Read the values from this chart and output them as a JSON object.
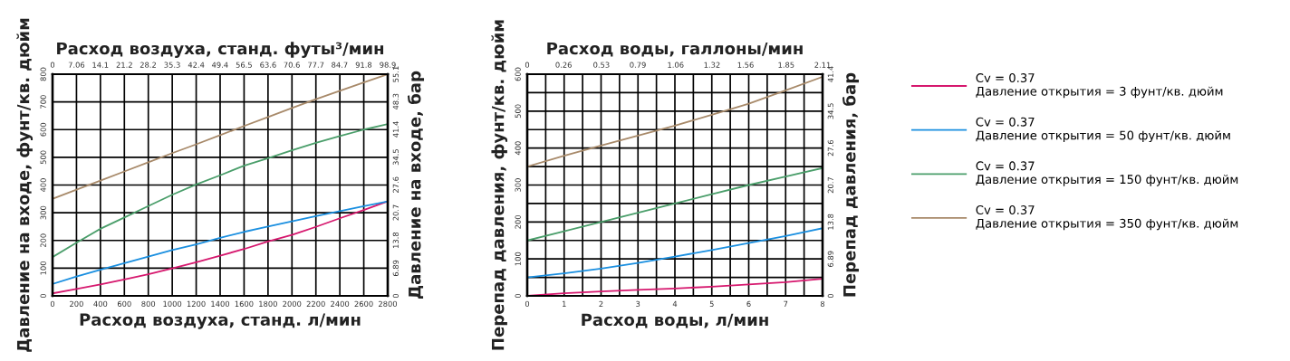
{
  "chart_data": [
    {
      "type": "line",
      "xlabel": "Расход воздуха, станд. л/мин",
      "x2label": "Расход воздуха, станд. футы³/мин",
      "ylabel": "Давление на входе, фунт/кв. дюйм",
      "y2label": "Давление на входе, бар",
      "x": [
        0,
        200,
        400,
        600,
        800,
        1000,
        1200,
        1400,
        1600,
        1800,
        2000,
        2200,
        2400,
        2600,
        2800
      ],
      "series": [
        {
          "name": "Cv = 0.37\nДавление открытия = 3 фунт/кв. дюйм",
          "color": "#d6186e",
          "values": [
            9,
            25,
            41,
            59,
            78,
            99,
            121,
            145,
            169,
            196,
            220,
            249,
            280,
            310,
            341
          ]
        },
        {
          "name": "Cv = 0.37\nДавление открытия = 50 фунт/кв. дюйм",
          "color": "#1a8fe0",
          "values": [
            43,
            70,
            94,
            118,
            142,
            165,
            186,
            209,
            231,
            250,
            269,
            288,
            306,
            324,
            341
          ]
        },
        {
          "name": "Cv = 0.37\nДавление открытия = 150 фунт/кв. дюйм",
          "color": "#4a9e6a",
          "values": [
            140,
            192,
            242,
            283,
            324,
            365,
            402,
            435,
            470,
            497,
            525,
            552,
            577,
            600,
            620
          ]
        },
        {
          "name": "Cv = 0.37\nДавление открытия = 350 фунт/кв. дюйм",
          "color": "#a88a6a",
          "values": [
            350,
            383,
            416,
            449,
            482,
            515,
            547,
            580,
            613,
            645,
            678,
            710,
            740,
            770,
            800
          ]
        }
      ],
      "xlim": [
        0,
        2800
      ],
      "xticks": [
        0,
        200,
        400,
        600,
        800,
        1000,
        1200,
        1400,
        1600,
        1800,
        2000,
        2200,
        2400,
        2600,
        2800
      ],
      "x2lim": [
        0,
        98.9
      ],
      "x2ticks": [
        0,
        7.06,
        14.1,
        21.2,
        28.2,
        35.3,
        42.4,
        49.4,
        56.5,
        63.6,
        70.6,
        77.7,
        84.7,
        91.8,
        98.9
      ],
      "ylim": [
        0,
        800
      ],
      "yticks": [
        0,
        100,
        200,
        300,
        400,
        500,
        600,
        700,
        800
      ],
      "y2lim": [
        0,
        55.1
      ],
      "y2ticks": [
        0,
        6.89,
        13.8,
        20.7,
        27.6,
        34.5,
        41.4,
        48.3,
        55.1
      ],
      "grid": true,
      "legend": "right"
    },
    {
      "type": "line",
      "xlabel": "Расход воды, л/мин",
      "x2label": "Расход воды, галлоны/мин",
      "ylabel": "Перепад давления, фунт/кв. дюйм",
      "y2label": "Перепад давления, бар",
      "x": [
        0,
        1,
        2,
        3,
        4,
        5,
        6,
        7,
        8
      ],
      "series": [
        {
          "color": "#d6186e",
          "values": [
            0,
            7,
            12,
            16,
            20,
            25,
            31,
            37,
            46
          ]
        },
        {
          "color": "#1a8fe0",
          "values": [
            50,
            61,
            74,
            89,
            106,
            124,
            143,
            162,
            183
          ]
        },
        {
          "color": "#4a9e6a",
          "values": [
            150,
            175,
            200,
            225,
            250,
            275,
            300,
            323,
            346
          ]
        },
        {
          "color": "#a88a6a",
          "values": [
            350,
            379,
            407,
            434,
            461,
            490,
            520,
            556,
            593
          ]
        }
      ],
      "xlim": [
        0,
        8
      ],
      "xticks": [
        0,
        {
          "value": 0.5,
          "label": null
        },
        1,
        {
          "value": 1.5,
          "label": null
        },
        2,
        {
          "value": 2.5,
          "label": null
        },
        3,
        {
          "value": 3.5,
          "label": null
        },
        4,
        {
          "value": 4.5,
          "label": null
        },
        5,
        {
          "value": 5.5,
          "label": null
        },
        6,
        {
          "value": 6.5,
          "label": null
        },
        7,
        {
          "value": 7.5,
          "label": null
        },
        8
      ],
      "x2lim": [
        0,
        2.11
      ],
      "x2ticks": [
        0,
        0.26,
        0.53,
        0.79,
        1.06,
        1.32,
        1.56,
        1.85,
        2.11
      ],
      "ylim": [
        0,
        600
      ],
      "yticks": [
        0,
        {
          "value": 50,
          "label": null
        },
        100,
        {
          "value": 150,
          "label": null
        },
        200,
        {
          "value": 250,
          "label": null
        },
        300,
        {
          "value": 350,
          "label": null
        },
        400,
        {
          "value": 450,
          "label": null
        },
        500,
        {
          "value": 550,
          "label": null
        },
        600
      ],
      "y2lim": [
        0,
        41.4
      ],
      "y2ticks": [
        0,
        6.89,
        13.8,
        20.7,
        27.6,
        34.5,
        41.4
      ],
      "grid": true,
      "legend": false
    }
  ]
}
